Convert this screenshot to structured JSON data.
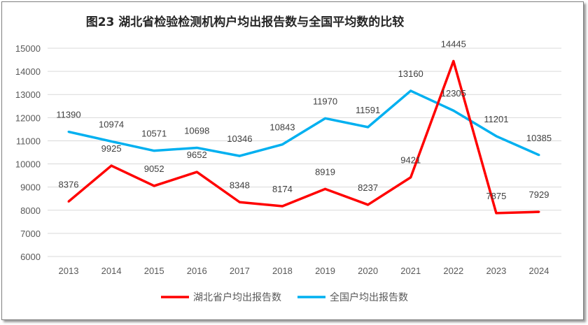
{
  "chart_data": {
    "type": "line",
    "title": "图23 湖北省检验检测机构户均出报告数与全国平均数的比较",
    "categories": [
      "2013",
      "2014",
      "2015",
      "2016",
      "2017",
      "2018",
      "2019",
      "2020",
      "2021",
      "2022",
      "2023",
      "2024"
    ],
    "series": [
      {
        "name": "湖北省户均出报告数",
        "color": "#ff0000",
        "values": [
          8376,
          9925,
          9052,
          9652,
          8348,
          8174,
          8919,
          8237,
          9421,
          14445,
          7875,
          7929
        ]
      },
      {
        "name": "全国户均出报告数",
        "color": "#00b0f0",
        "values": [
          11390,
          10974,
          10571,
          10698,
          10346,
          10843,
          11970,
          11591,
          13160,
          12305,
          11201,
          10385
        ]
      }
    ],
    "ylim": [
      6000,
      15000
    ],
    "yticks": [
      6000,
      7000,
      8000,
      9000,
      10000,
      11000,
      12000,
      13000,
      14000,
      15000
    ],
    "grid": true,
    "legend": "bottom",
    "xlabel": "",
    "ylabel": ""
  }
}
